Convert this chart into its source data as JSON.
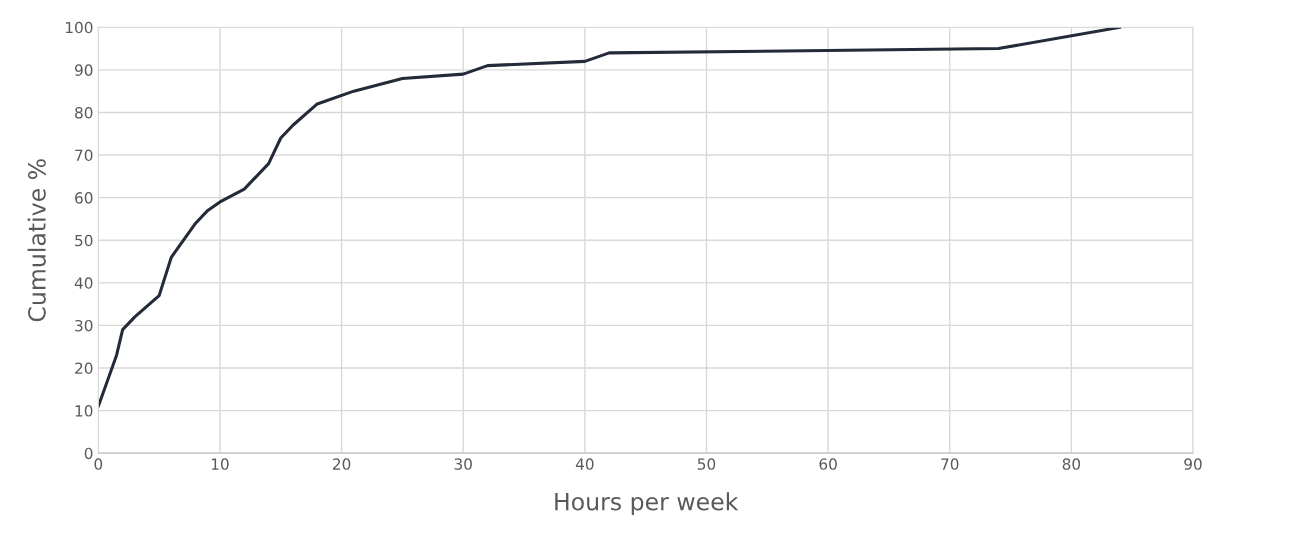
{
  "chart_data": {
    "type": "line",
    "xlabel": "Hours per week",
    "ylabel": "Cumulative %",
    "series": [
      {
        "color": "#232b38",
        "x": [
          0,
          1.5,
          2,
          3,
          5,
          6,
          8,
          9,
          10,
          12,
          14,
          15,
          16,
          18,
          21,
          25,
          30,
          32,
          40,
          42,
          74,
          84
        ],
        "values": [
          11,
          23,
          29,
          32,
          37,
          46,
          54,
          57,
          59,
          62,
          68,
          74,
          77,
          82,
          85,
          88,
          89,
          91,
          92,
          94,
          95,
          100
        ]
      }
    ],
    "xlim": [
      0,
      90
    ],
    "xticks": [
      0,
      10,
      20,
      30,
      40,
      50,
      60,
      70,
      80,
      90
    ],
    "ylim": [
      0,
      100
    ],
    "yticks": [
      0,
      10,
      20,
      30,
      40,
      50,
      60,
      70,
      80,
      90,
      100
    ],
    "grid": true,
    "legend": false,
    "marker": "none",
    "line_style": "solid"
  }
}
